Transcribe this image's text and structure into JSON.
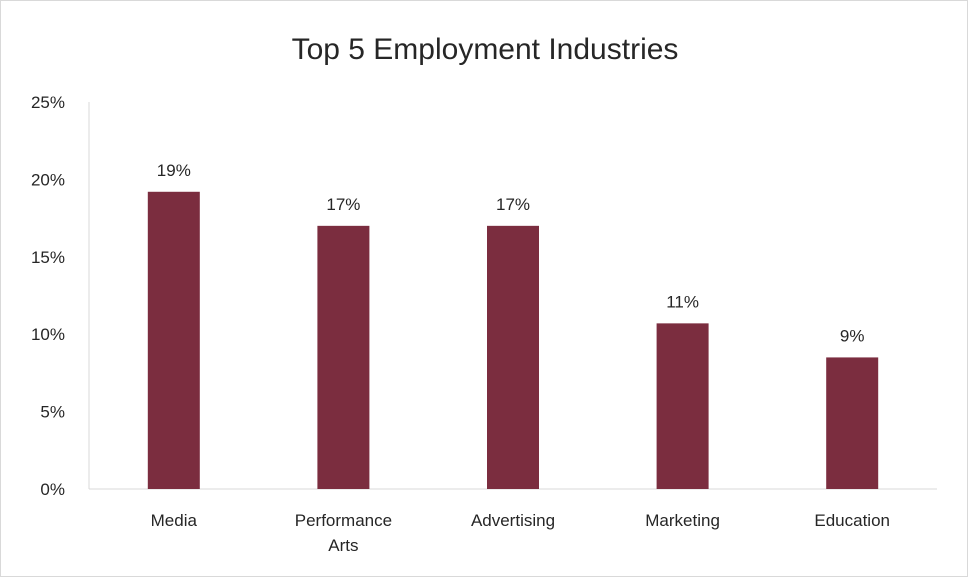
{
  "chart_data": {
    "type": "bar",
    "title": "Top 5 Employment Industries",
    "xlabel": "",
    "ylabel": "",
    "categories": [
      "Media",
      "Performance Arts",
      "Advertising",
      "Marketing",
      "Education"
    ],
    "category_lines": [
      [
        "Media"
      ],
      [
        "Performance",
        "Arts"
      ],
      [
        "Advertising"
      ],
      [
        "Marketing"
      ],
      [
        "Education"
      ]
    ],
    "values": [
      19.2,
      17.0,
      17.0,
      10.7,
      8.5
    ],
    "data_labels": [
      "19%",
      "17%",
      "17%",
      "11%",
      "9%"
    ],
    "yticks": [
      0,
      5,
      10,
      15,
      20,
      25
    ],
    "ytick_labels": [
      "0%",
      "5%",
      "10%",
      "15%",
      "20%",
      "25%"
    ],
    "ylim": [
      0,
      25
    ],
    "grid": false,
    "legend": "none",
    "colors": {
      "bar": "#7b2d3f",
      "axis": "#d9d9d9",
      "text": "#262626"
    }
  }
}
